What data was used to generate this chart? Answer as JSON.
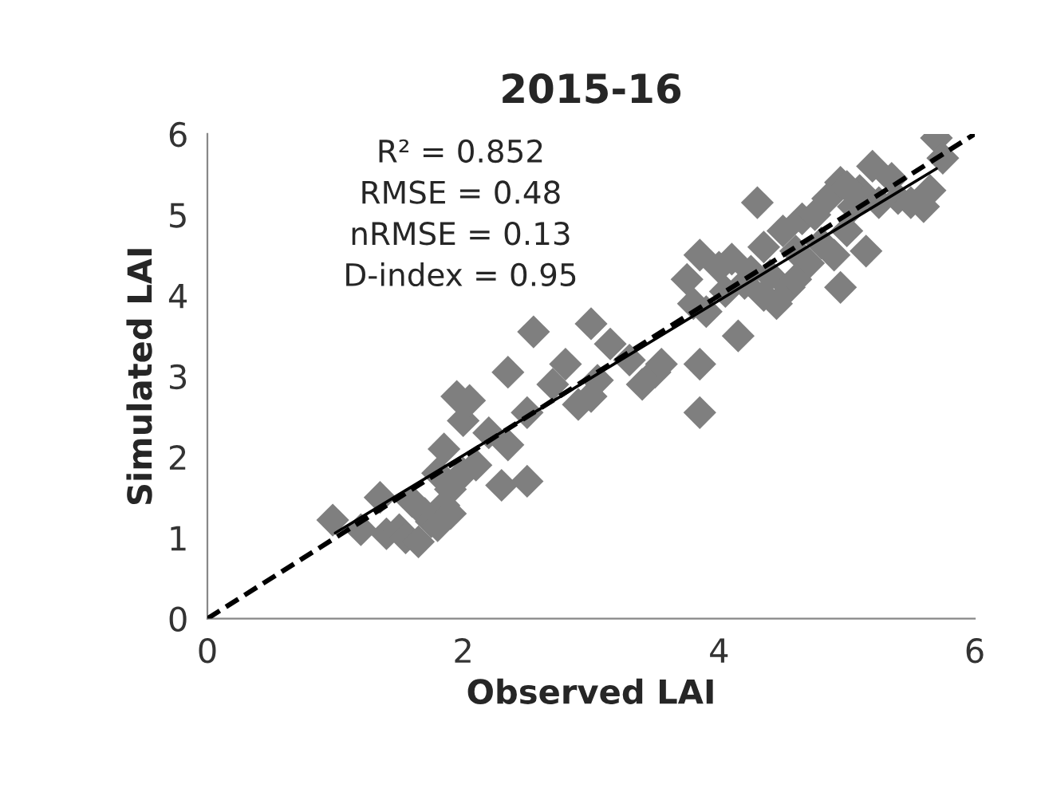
{
  "chart_data": {
    "type": "scatter",
    "title": "2015-16",
    "xlabel": "Observed LAI",
    "ylabel": "Simulated LAI",
    "annotations": [
      "R² = 0.852",
      "RMSE = 0.48",
      "nRMSE = 0.13",
      "D-index = 0.95"
    ],
    "xlim": [
      0,
      6
    ],
    "xticks": [
      0,
      2,
      4,
      6
    ],
    "ylim": [
      0,
      6
    ],
    "yticks": [
      0,
      1,
      2,
      3,
      4,
      5,
      6
    ],
    "grid": false,
    "legend": false,
    "marker": "diamond",
    "series": [
      {
        "color": "#7f7f7f",
        "x": [
          0.98,
          1.2,
          1.35,
          1.4,
          1.5,
          1.55,
          1.6,
          1.65,
          1.7,
          1.75,
          1.8,
          1.8,
          1.85,
          1.85,
          1.9,
          1.9,
          1.95,
          2.0,
          2.0,
          2.05,
          2.1,
          2.2,
          2.3,
          2.35,
          2.35,
          2.5,
          2.5,
          2.55,
          2.7,
          2.8,
          2.9,
          3.0,
          3.0,
          3.05,
          3.15,
          3.3,
          3.4,
          3.5,
          3.55,
          3.75,
          3.8,
          3.85,
          3.85,
          3.85,
          3.9,
          4.0,
          4.05,
          4.1,
          4.15,
          4.2,
          4.25,
          4.3,
          4.35,
          4.4,
          4.45,
          4.5,
          4.55,
          4.6,
          4.65,
          4.7,
          4.75,
          4.8,
          4.85,
          4.9,
          4.95,
          4.95,
          5.0,
          5.05,
          5.1,
          5.15,
          5.2,
          5.25,
          5.4,
          5.5,
          5.6,
          5.65,
          5.7,
          5.75,
          4.6,
          4.35,
          5.0,
          5.35
        ],
        "values": [
          1.22,
          1.1,
          1.5,
          1.05,
          1.1,
          1.0,
          1.45,
          0.95,
          1.3,
          1.2,
          1.15,
          1.8,
          1.4,
          2.1,
          1.6,
          1.3,
          2.75,
          1.8,
          2.45,
          2.7,
          1.9,
          2.3,
          1.65,
          3.05,
          2.15,
          1.7,
          2.55,
          3.55,
          2.9,
          3.15,
          2.65,
          3.65,
          2.75,
          2.95,
          3.4,
          3.2,
          2.9,
          3.05,
          3.15,
          4.2,
          3.9,
          4.5,
          3.15,
          2.55,
          3.8,
          4.35,
          4.05,
          4.45,
          3.5,
          4.15,
          4.3,
          5.15,
          4.0,
          4.25,
          3.9,
          4.8,
          4.1,
          4.55,
          4.95,
          4.4,
          5.0,
          4.65,
          5.2,
          4.5,
          5.4,
          4.1,
          4.8,
          5.1,
          5.3,
          4.55,
          5.6,
          5.15,
          5.2,
          5.15,
          5.1,
          5.3,
          5.95,
          5.7,
          4.2,
          4.6,
          5.35,
          5.45
        ]
      },
      {
        "type": "line",
        "color": "#000000",
        "line_style": "solid",
        "marker": "none",
        "x": [
          1.0,
          5.7
        ],
        "values": [
          1.06,
          5.57
        ]
      },
      {
        "type": "line",
        "color": "#000000",
        "line_style": "dashed",
        "marker": "none",
        "x": [
          0,
          6
        ],
        "values": [
          0,
          6
        ]
      }
    ]
  }
}
